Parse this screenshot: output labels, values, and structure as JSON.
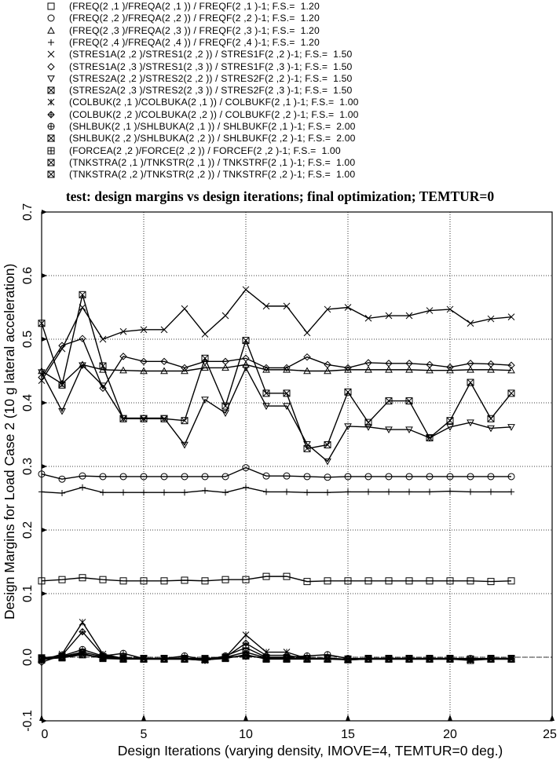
{
  "legend": [
    {
      "symbol": "square",
      "text": "(FREQ(2 ,1 )/FREQA(2 ,1 )) / FREQF(2 ,1 )-1; F.S.=  1.20"
    },
    {
      "symbol": "circle",
      "text": "(FREQ(2 ,2 )/FREQA(2 ,2 )) / FREQF(2 ,2 )-1; F.S.=  1.20"
    },
    {
      "symbol": "triangle",
      "text": "(FREQ(2 ,3 )/FREQA(2 ,3 )) / FREQF(2 ,3 )-1; F.S.=  1.20"
    },
    {
      "symbol": "plus",
      "text": "(FREQ(2 ,4 )/FREQA(2 ,4 )) / FREQF(2 ,4 )-1; F.S.=  1.20"
    },
    {
      "symbol": "x",
      "text": "(STRES1A(2 ,2 )/STRES1(2 ,2 )) / STRES1F(2 ,2 )-1; F.S.=  1.50"
    },
    {
      "symbol": "diamond",
      "text": "(STRES1A(2 ,3 )/STRES1(2 ,3 )) / STRES1F(2 ,3 )-1; F.S.=  1.50"
    },
    {
      "symbol": "triangle-down",
      "text": "(STRES2A(2 ,2 )/STRES2(2 ,2 )) / STRES2F(2 ,2 )-1; F.S.=  1.50"
    },
    {
      "symbol": "square-x",
      "text": "(STRES2A(2 ,3 )/STRES2(2 ,3 )) / STRES2F(2 ,3 )-1; F.S.=  1.50"
    },
    {
      "symbol": "asterisk",
      "text": "(COLBUK(2 ,1 )/COLBUKA(2 ,1 )) / COLBUKF(2 ,1 )-1; F.S.=  1.00"
    },
    {
      "symbol": "diamond-plus",
      "text": "(COLBUK(2 ,2 )/COLBUKA(2 ,2 )) / COLBUKF(2 ,2 )-1; F.S.=  1.00"
    },
    {
      "symbol": "circle-plus",
      "text": "(SHLBUK(2 ,1 )/SHLBUKA(2 ,1 )) / SHLBUKF(2 ,1 )-1; F.S.=  2.00"
    },
    {
      "symbol": "hourglass-box",
      "text": "(SHLBUK(2 ,2 )/SHLBUKA(2 ,2 )) / SHLBUKF(2 ,2 )-1; F.S.=  2.00"
    },
    {
      "symbol": "square-plus",
      "text": "(FORCEA(2 ,2 )/FORCE(2 ,2 )) / FORCEF(2 ,2 )-1; F.S.=  1.00"
    },
    {
      "symbol": "square-x",
      "text": "(TNKSTRA(2 ,1 )/TNKSTR(2 ,1 )) / TNKSTRF(2 ,1 )-1; F.S.=  1.00"
    },
    {
      "symbol": "square-x",
      "text": "(TNKSTRA(2 ,2 )/TNKSTR(2 ,2 )) / TNKSTRF(2 ,2 )-1; F.S.=  1.00"
    }
  ],
  "chart_data": {
    "type": "line",
    "title": "test: design margins vs design iterations; final optimization; TEMTUR=0",
    "xlabel": "Design Iterations (varying density, IMOVE=4, TEMTUR=0 deg.)",
    "ylabel": "Design Margins for Load Case 2 (10 g lateral acceleration)",
    "xlim": [
      0,
      25
    ],
    "ylim": [
      -0.1,
      0.7
    ],
    "xticks": [
      "0",
      "5",
      "10",
      "15",
      "20",
      "25"
    ],
    "yticks": [
      "-0.1",
      "0.0",
      "0.1",
      "0.2",
      "0.3",
      "0.4",
      "0.5",
      "0.6",
      "0.7"
    ],
    "grid": true,
    "reference_line": 0.0,
    "x": [
      0,
      1,
      2,
      3,
      4,
      5,
      6,
      7,
      8,
      9,
      10,
      11,
      12,
      13,
      14,
      15,
      16,
      17,
      18,
      19,
      20,
      21,
      22,
      23
    ],
    "series": [
      {
        "symbol": "square",
        "values": [
          0.12,
          0.122,
          0.125,
          0.122,
          0.12,
          0.12,
          0.12,
          0.121,
          0.12,
          0.122,
          0.122,
          0.127,
          0.127,
          0.119,
          0.12,
          0.12,
          0.12,
          0.12,
          0.12,
          0.12,
          0.12,
          0.12,
          0.119,
          0.12
        ]
      },
      {
        "symbol": "circle",
        "values": [
          0.288,
          0.28,
          0.285,
          0.284,
          0.284,
          0.284,
          0.284,
          0.284,
          0.284,
          0.284,
          0.298,
          0.285,
          0.285,
          0.284,
          0.283,
          0.284,
          0.284,
          0.284,
          0.284,
          0.284,
          0.284,
          0.284,
          0.284,
          0.284
        ]
      },
      {
        "symbol": "triangle",
        "values": [
          0.45,
          0.43,
          0.46,
          0.452,
          0.451,
          0.45,
          0.45,
          0.45,
          0.455,
          0.455,
          0.46,
          0.452,
          0.452,
          0.45,
          0.45,
          0.452,
          0.452,
          0.452,
          0.452,
          0.451,
          0.451,
          0.452,
          0.452,
          0.451
        ]
      },
      {
        "symbol": "plus",
        "values": [
          0.26,
          0.258,
          0.267,
          0.259,
          0.259,
          0.259,
          0.259,
          0.259,
          0.262,
          0.259,
          0.267,
          0.26,
          0.26,
          0.259,
          0.259,
          0.26,
          0.26,
          0.26,
          0.26,
          0.26,
          0.261,
          0.26,
          0.26,
          0.26
        ]
      },
      {
        "symbol": "x",
        "values": [
          0.435,
          0.485,
          0.55,
          0.5,
          0.512,
          0.515,
          0.515,
          0.548,
          0.508,
          0.537,
          0.578,
          0.552,
          0.552,
          0.51,
          0.547,
          0.55,
          0.533,
          0.537,
          0.537,
          0.545,
          0.547,
          0.525,
          0.532,
          0.535
        ]
      },
      {
        "symbol": "diamond",
        "values": [
          0.44,
          0.49,
          0.501,
          0.423,
          0.473,
          0.465,
          0.465,
          0.455,
          0.465,
          0.465,
          0.47,
          0.455,
          0.455,
          0.472,
          0.46,
          0.455,
          0.463,
          0.462,
          0.462,
          0.46,
          0.456,
          0.462,
          0.461,
          0.459
        ]
      },
      {
        "symbol": "triangle-down",
        "values": [
          0.448,
          0.387,
          0.459,
          0.427,
          0.376,
          0.376,
          0.376,
          0.334,
          0.405,
          0.384,
          0.455,
          0.395,
          0.395,
          0.335,
          0.308,
          0.363,
          0.362,
          0.358,
          0.358,
          0.345,
          0.362,
          0.369,
          0.36,
          0.362
        ]
      },
      {
        "symbol": "square-x",
        "values": [
          0.525,
          0.428,
          0.57,
          0.458,
          0.375,
          0.375,
          0.375,
          0.372,
          0.47,
          0.395,
          0.498,
          0.415,
          0.415,
          0.328,
          0.334,
          0.417,
          0.369,
          0.403,
          0.403,
          0.345,
          0.372,
          0.432,
          0.375,
          0.415
        ]
      },
      {
        "symbol": "asterisk",
        "values": [
          -0.005,
          0.005,
          0.055,
          0.005,
          -0.002,
          -0.003,
          -0.003,
          -0.003,
          -0.005,
          0.0,
          0.035,
          0.008,
          0.008,
          -0.002,
          -0.002,
          -0.004,
          -0.003,
          -0.003,
          -0.003,
          -0.003,
          -0.003,
          -0.004,
          -0.003,
          -0.003
        ]
      },
      {
        "symbol": "diamond-plus",
        "values": [
          -0.008,
          0.003,
          0.04,
          0.003,
          -0.002,
          -0.003,
          -0.003,
          -0.003,
          -0.005,
          0.0,
          0.022,
          0.003,
          0.003,
          -0.002,
          -0.002,
          -0.004,
          -0.003,
          -0.003,
          -0.003,
          -0.003,
          -0.003,
          -0.004,
          -0.003,
          -0.003
        ]
      },
      {
        "symbol": "circle-plus",
        "values": [
          -0.004,
          0.002,
          0.012,
          0.002,
          0.006,
          -0.002,
          -0.002,
          0.002,
          -0.004,
          0.002,
          0.015,
          0.0,
          0.0,
          0.002,
          0.004,
          -0.002,
          -0.002,
          -0.002,
          -0.002,
          -0.002,
          -0.002,
          -0.002,
          -0.002,
          -0.002
        ]
      },
      {
        "symbol": "hourglass-box",
        "values": [
          -0.002,
          0.001,
          0.008,
          0.001,
          -0.001,
          -0.002,
          -0.002,
          -0.002,
          -0.003,
          0.0,
          0.008,
          -0.001,
          -0.001,
          -0.002,
          -0.002,
          -0.003,
          -0.002,
          -0.002,
          -0.002,
          -0.002,
          -0.002,
          -0.003,
          -0.002,
          -0.002
        ]
      },
      {
        "symbol": "square-plus",
        "values": [
          -0.003,
          -0.001,
          0.004,
          -0.001,
          -0.002,
          -0.002,
          -0.002,
          -0.002,
          -0.003,
          -0.001,
          0.003,
          -0.002,
          -0.002,
          -0.002,
          -0.002,
          -0.003,
          -0.002,
          -0.002,
          -0.002,
          -0.002,
          -0.002,
          -0.003,
          -0.002,
          -0.002
        ]
      },
      {
        "symbol": "square-x",
        "values": [
          -0.004,
          0.0,
          0.006,
          -0.002,
          -0.003,
          -0.003,
          -0.003,
          -0.003,
          -0.004,
          -0.002,
          0.004,
          -0.003,
          -0.003,
          -0.003,
          -0.003,
          -0.004,
          -0.003,
          -0.003,
          -0.003,
          -0.003,
          -0.003,
          -0.005,
          -0.003,
          -0.003
        ]
      },
      {
        "symbol": "square-x",
        "values": [
          -0.001,
          0.002,
          0.004,
          0.0,
          -0.001,
          -0.002,
          -0.002,
          -0.002,
          -0.002,
          0.0,
          0.002,
          -0.001,
          -0.001,
          -0.002,
          -0.002,
          -0.003,
          -0.002,
          -0.002,
          -0.002,
          -0.002,
          -0.002,
          -0.003,
          -0.002,
          -0.002
        ]
      }
    ]
  }
}
